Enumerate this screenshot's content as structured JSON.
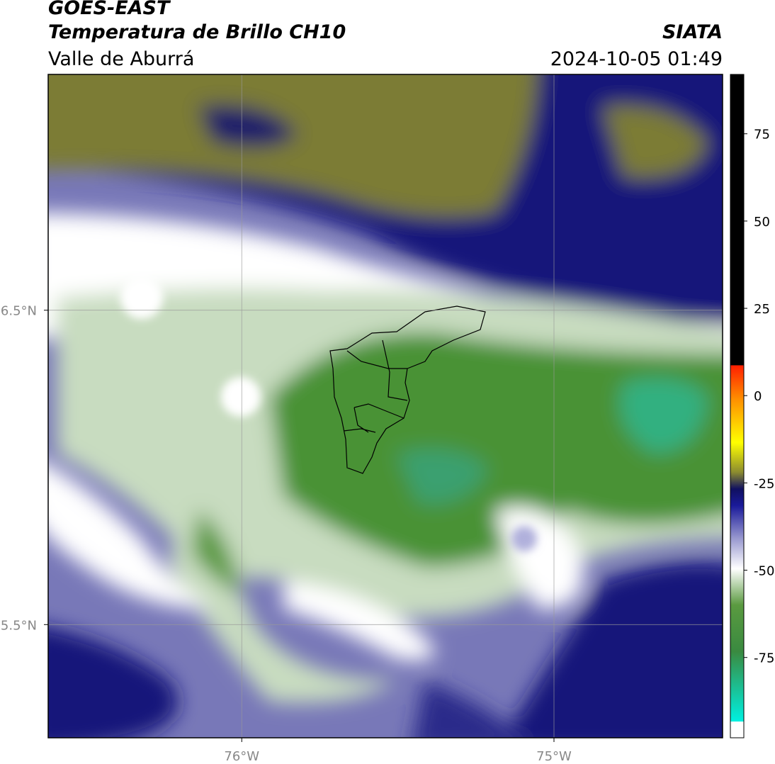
{
  "header": {
    "title": "GOES-EAST",
    "subtitle": "Temperatura de Brillo CH10",
    "region": "Valle de Aburrá",
    "source": "SIATA",
    "timestamp": "2024-10-05 01:49"
  },
  "map": {
    "xlim": [
      -76.62,
      -74.46
    ],
    "ylim": [
      5.14,
      7.25
    ],
    "xticks": [
      {
        "value": -76,
        "label": "76°W"
      },
      {
        "value": -75,
        "label": "75°W"
      }
    ],
    "yticks": [
      {
        "value": 6.5,
        "label": "6.5°N"
      },
      {
        "value": 5.5,
        "label": "5.5°N"
      }
    ]
  },
  "colorbar": {
    "lim": [
      -98,
      92
    ],
    "ticks": [
      75,
      50,
      25,
      0,
      -25,
      -50,
      -75
    ]
  }
}
